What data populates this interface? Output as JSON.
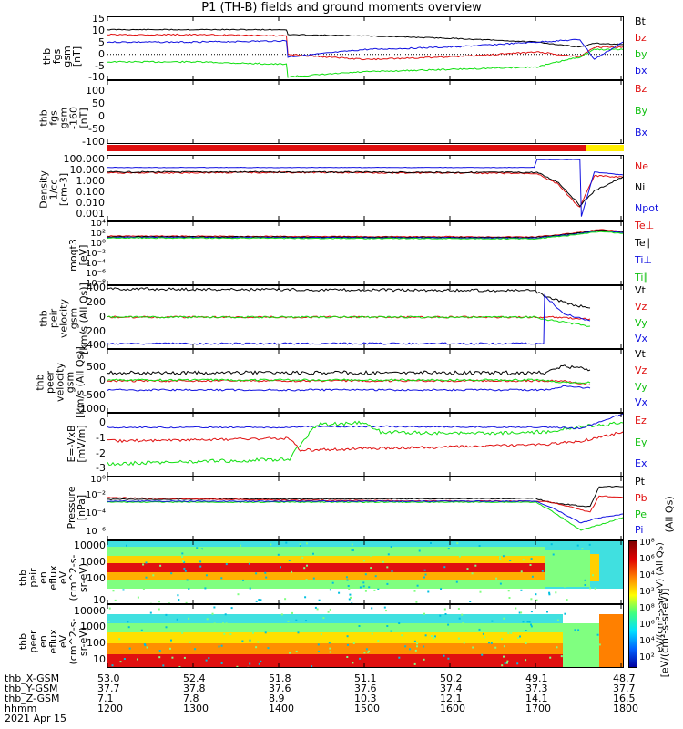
{
  "title": "P1 (TH-B) fields and ground moments overview",
  "colors": {
    "black": "#000000",
    "red": "#e01010",
    "green": "#10e010",
    "blue": "#1010e0",
    "yellow": "#ffee00"
  },
  "chart_data": [
    {
      "type": "line",
      "panel": "fgs-gsm",
      "ylabel": "thb\nfgs\ngsm\n[nT]",
      "yticks": [
        "15",
        "10",
        "5",
        "0",
        "-5",
        "-10"
      ],
      "ylim": [
        -10,
        15
      ],
      "series": [
        {
          "name": "Bt",
          "color": "black",
          "x": [
            "12:00",
            "13:00",
            "14:05",
            "14:06",
            "15:00",
            "16:00",
            "17:00",
            "17:30",
            "17:40",
            "18:00"
          ],
          "values": [
            10,
            10,
            10,
            8,
            7.5,
            6.5,
            5,
            3,
            4.5,
            4
          ]
        },
        {
          "name": "bz",
          "color": "red",
          "x": [
            "12:00",
            "13:00",
            "14:05",
            "14:06",
            "15:00",
            "16:00",
            "17:00",
            "17:30",
            "17:40",
            "18:00"
          ],
          "values": [
            8,
            8,
            7.5,
            0,
            -2,
            -1,
            1,
            -1,
            3,
            3
          ]
        },
        {
          "name": "by",
          "color": "green",
          "x": [
            "12:00",
            "13:00",
            "14:05",
            "14:06",
            "15:00",
            "16:00",
            "17:00",
            "17:30",
            "17:40",
            "18:00"
          ],
          "values": [
            -3,
            -3,
            -4,
            -9,
            -7,
            -6,
            -5,
            -1,
            2,
            2
          ]
        },
        {
          "name": "bx",
          "color": "blue",
          "x": [
            "12:00",
            "13:00",
            "14:05",
            "14:06",
            "15:00",
            "16:00",
            "17:00",
            "17:30",
            "17:40",
            "18:00"
          ],
          "values": [
            5,
            5,
            5.5,
            -1,
            2,
            3,
            5,
            6,
            -2,
            5
          ]
        }
      ]
    },
    {
      "type": "line",
      "panel": "fgs-gsm-160",
      "ylabel": "thb\nfgs\ngsm\n-160\n[nT]",
      "yticks": [
        "100",
        "50",
        "0",
        "-50",
        "-100"
      ],
      "ylim": [
        -125,
        125
      ],
      "series": [
        {
          "name": "Bz",
          "color": "red"
        },
        {
          "name": "By",
          "color": "green"
        },
        {
          "name": "Bx",
          "color": "blue"
        }
      ]
    },
    {
      "type": "line",
      "panel": "density",
      "ylabel": "Density\n1/cc\n[cm-3]",
      "yticks": [
        "100.000",
        "10.000",
        "1.000",
        "0.100",
        "0.010",
        "0.001"
      ],
      "ylim": [
        0.0001,
        500
      ],
      "scale": "log",
      "series": [
        {
          "name": "Ne",
          "color": "red",
          "x": [
            "12:00",
            "14:00",
            "16:00",
            "17:00",
            "17:15",
            "17:25",
            "17:30",
            "17:40",
            "18:00"
          ],
          "values": [
            8,
            9,
            8,
            7,
            0.5,
            0.01,
            0.002,
            4,
            3
          ]
        },
        {
          "name": "Ni",
          "color": "black",
          "x": [
            "12:00",
            "14:00",
            "16:00",
            "17:00",
            "17:15",
            "17:25",
            "17:30",
            "17:40",
            "18:00"
          ],
          "values": [
            10,
            10,
            9,
            9,
            0.8,
            0.02,
            0.003,
            0.1,
            3
          ]
        },
        {
          "name": "Npot",
          "color": "blue",
          "x": [
            "12:00",
            "14:00",
            "16:00",
            "16:58",
            "17:00",
            "17:30",
            "17:31",
            "17:40",
            "18:00"
          ],
          "values": [
            30,
            30,
            30,
            30,
            200,
            200,
            0.0002,
            10,
            5
          ]
        }
      ]
    },
    {
      "type": "line",
      "panel": "moments-temp",
      "ylabel": "moqt3\n[eV]",
      "yticks": [
        "10⁴",
        "10²",
        "10⁰",
        "10⁻²",
        "10⁻⁴",
        "10⁻⁶",
        "10⁻⁸"
      ],
      "ylim": [
        -8,
        4
      ],
      "scale": "log",
      "series": [
        {
          "name": "Te⊥",
          "color": "red"
        },
        {
          "name": "Te∥",
          "color": "black"
        },
        {
          "name": "Ti⊥",
          "color": "blue"
        },
        {
          "name": "Ti∥",
          "color": "green"
        }
      ]
    },
    {
      "type": "line",
      "panel": "peir-velocity",
      "ylabel": "thb\npeir\nvelocity\ngsm\n[km/s (All Qs)]",
      "yticks": [
        "400",
        "200",
        "0",
        "-200",
        "-400"
      ],
      "ylim": [
        -400,
        400
      ],
      "series": [
        {
          "name": "Vt",
          "color": "black"
        },
        {
          "name": "Vz",
          "color": "red"
        },
        {
          "name": "Vy",
          "color": "green"
        },
        {
          "name": "Vx",
          "color": "blue"
        }
      ]
    },
    {
      "type": "line",
      "panel": "peer-velocity",
      "ylabel": "thb\npeer\nvelocity\ngsm\n[km/s (All Qs)]",
      "yticks": [
        "500",
        "0",
        "-500",
        "-1000"
      ],
      "ylim": [
        -1000,
        800
      ],
      "series": [
        {
          "name": "Vt",
          "color": "black"
        },
        {
          "name": "Vz",
          "color": "red"
        },
        {
          "name": "Vy",
          "color": "green"
        },
        {
          "name": "Vx",
          "color": "blue"
        }
      ]
    },
    {
      "type": "line",
      "panel": "efield",
      "ylabel": "E=-VxB\n[mV/m]",
      "yticks": [
        "0",
        "-1",
        "-2",
        "-3"
      ],
      "ylim": [
        -3,
        0.5
      ],
      "series": [
        {
          "name": "Ez",
          "color": "red"
        },
        {
          "name": "Ey",
          "color": "green"
        },
        {
          "name": "Ex",
          "color": "blue"
        }
      ]
    },
    {
      "type": "line",
      "panel": "pressure",
      "ylabel": "Pressure\n[nPa]",
      "yticks": [
        "10⁰",
        "10⁻²",
        "10⁻⁴",
        "10⁻⁶"
      ],
      "ylim": [
        -7,
        1
      ],
      "scale": "log",
      "series": [
        {
          "name": "Pt",
          "color": "black"
        },
        {
          "name": "Pb",
          "color": "red"
        },
        {
          "name": "Pe",
          "color": "green"
        },
        {
          "name": "Pi",
          "color": "blue"
        }
      ],
      "legend_note": "(All Qs)"
    },
    {
      "type": "heatmap",
      "panel": "peir-eflux",
      "ylabel": "thb\npeir\nen\neflux\neV\n(cm^2-s-\nsr-eV)",
      "yticks": [
        "10000",
        "1000",
        "100",
        "10"
      ]
    },
    {
      "type": "heatmap",
      "panel": "peer-eflux",
      "ylabel": "thb\npeer\nen\neflux\neV\n(cm^2-s-\nsr-eV)",
      "yticks": [
        "10000",
        "1000",
        "100",
        "10"
      ]
    }
  ],
  "colorbar": {
    "ticks": [
      "10⁸",
      "10⁶",
      "10⁴",
      "10²",
      "10⁸",
      "10⁶",
      "10⁴",
      "10²"
    ],
    "label": "[eV/(cm²-s-sr-eV)]",
    "label2": "eV/(cm²-s-sr-eV) (All Qs)"
  },
  "ephemeris": {
    "rows": [
      {
        "label": "thb_X-GSM",
        "values": [
          "53.0",
          "52.4",
          "51.8",
          "51.1",
          "50.2",
          "49.1",
          "48.7"
        ]
      },
      {
        "label": "thb_Y-GSM",
        "values": [
          "37.7",
          "37.8",
          "37.6",
          "37.6",
          "37.4",
          "37.3",
          "37.7"
        ]
      },
      {
        "label": "thb_Z-GSM",
        "values": [
          "7.1",
          "7.8",
          "8.9",
          "10.3",
          "12.1",
          "14.1",
          "16.5"
        ]
      },
      {
        "label": "hhmm",
        "values": [
          "1200",
          "1300",
          "1400",
          "1500",
          "1600",
          "1700",
          "1800"
        ]
      }
    ],
    "date": "2021 Apr 15"
  }
}
